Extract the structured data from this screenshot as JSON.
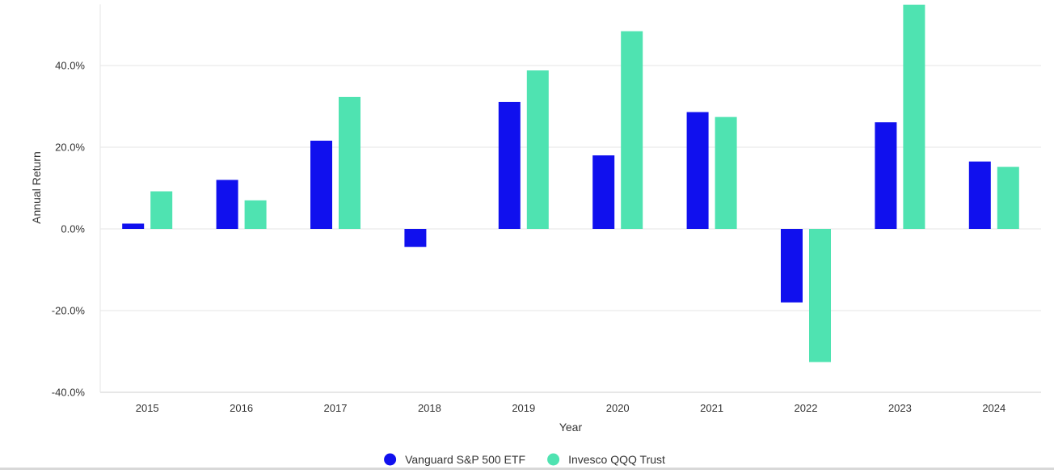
{
  "chart_data": {
    "type": "bar",
    "xlabel": "Year",
    "ylabel": "Annual Return",
    "ylim": [
      -40,
      55
    ],
    "yticks": [
      -40,
      -20,
      0,
      20,
      40
    ],
    "ytick_labels": [
      "-40.0%",
      "-20.0%",
      "0.0%",
      "20.0%",
      "40.0%"
    ],
    "grid": true,
    "legend_position": "bottom-center",
    "categories": [
      "2015",
      "2016",
      "2017",
      "2018",
      "2019",
      "2020",
      "2021",
      "2022",
      "2023",
      "2024"
    ],
    "series": [
      {
        "name": "Vanguard S&P 500 ETF",
        "color": "#1010ee",
        "values": [
          1.3,
          12.0,
          21.6,
          -4.4,
          31.1,
          18.0,
          28.6,
          -18.0,
          26.1,
          16.5
        ]
      },
      {
        "name": "Invesco QQQ Trust",
        "color": "#4fe3b1",
        "values": [
          9.2,
          7.0,
          32.3,
          0,
          38.8,
          48.4,
          27.4,
          -32.6,
          54.9,
          15.2
        ]
      }
    ]
  }
}
